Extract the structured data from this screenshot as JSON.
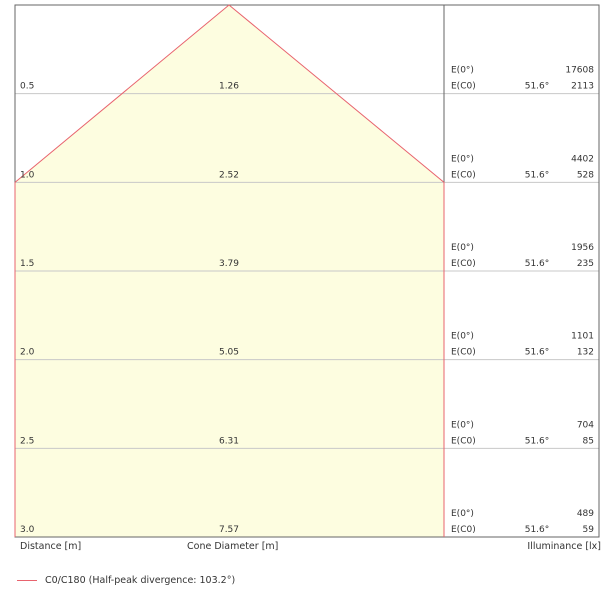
{
  "chart_data": {
    "type": "area",
    "distance_label": "Distance [m]",
    "diameter_label": "Cone Diameter [m]",
    "illuminance_label": "Illuminance [lx]",
    "rows": [
      {
        "distance": "0.5",
        "diameter": 1.26,
        "e0": 17608,
        "ec0": 2113,
        "angle": "51.6°"
      },
      {
        "distance": "1.0",
        "diameter": 2.52,
        "e0": 4402,
        "ec0": 528,
        "angle": "51.6°"
      },
      {
        "distance": "1.5",
        "diameter": 3.79,
        "e0": 1956,
        "ec0": 235,
        "angle": "51.6°"
      },
      {
        "distance": "2.0",
        "diameter": 5.05,
        "e0": 1101,
        "ec0": 132,
        "angle": "51.6°"
      },
      {
        "distance": "2.5",
        "diameter": 6.31,
        "e0": 704,
        "ec0": 85,
        "angle": "51.6°"
      },
      {
        "distance": "3.0",
        "diameter": 7.57,
        "e0": 489,
        "ec0": 59,
        "angle": "51.6°"
      }
    ],
    "e0_label": "E(0°)",
    "ec0_label": "E(C0)",
    "legend": "C0/C180 (Half-peak divergence: 103.2°)",
    "colors": {
      "line": "#e8636e",
      "fill": "#fdfde0",
      "grid": "#c8c8c8",
      "border": "#666666"
    }
  }
}
